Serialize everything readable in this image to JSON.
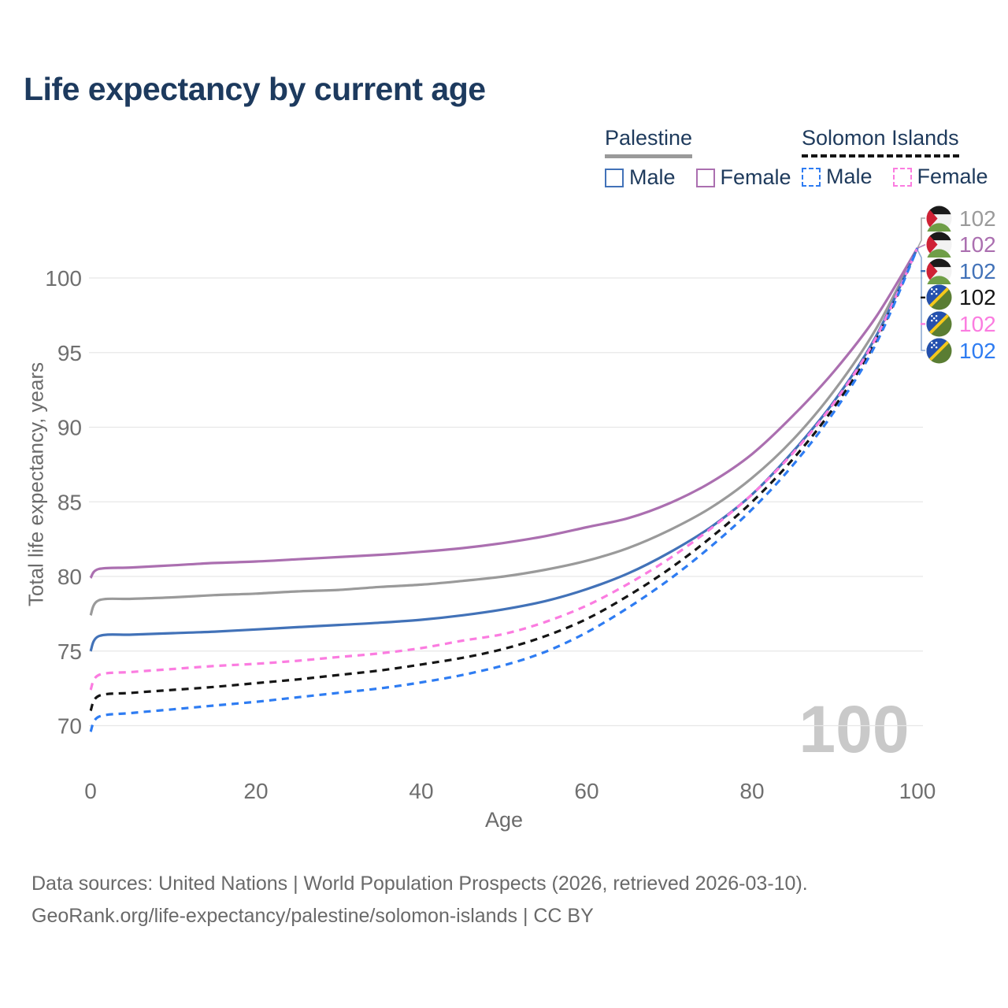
{
  "title": "Life expectancy by current age",
  "legend": {
    "groups": [
      {
        "country": "Palestine",
        "line_style": "solid",
        "country_line_color": "#9a9a9a",
        "items": [
          {
            "label": "Male",
            "color": "#4272b8"
          },
          {
            "label": "Female",
            "color": "#ab6fb0"
          }
        ]
      },
      {
        "country": "Solomon Islands",
        "line_style": "dashed",
        "country_line_color": "#151515",
        "items": [
          {
            "label": "Male",
            "color": "#2e7cf2"
          },
          {
            "label": "Female",
            "color": "#fb7ce0"
          }
        ]
      }
    ]
  },
  "watermark": "100",
  "footer": {
    "line1": "Data sources: United Nations | World Population Prospects (2026, retrieved 2026-03-10).",
    "line2": "GeoRank.org/life-expectancy/palestine/solomon-islands | CC BY"
  },
  "chart_data": {
    "type": "line",
    "title": "Life expectancy by current age",
    "xlabel": "Age",
    "ylabel": "Total life expectancy, years",
    "x_ticks": [
      0,
      20,
      40,
      60,
      80,
      100
    ],
    "y_ticks": [
      100,
      95,
      90,
      85,
      80,
      75,
      70
    ],
    "xlim": [
      0,
      100
    ],
    "ylim": [
      67,
      103
    ],
    "grid": "horizontal",
    "legend_position": "top-right",
    "x": [
      0,
      1,
      5,
      10,
      15,
      20,
      25,
      30,
      35,
      40,
      45,
      50,
      55,
      60,
      65,
      70,
      75,
      80,
      85,
      90,
      95,
      100
    ],
    "series": [
      {
        "name": "Palestine — Both sexes",
        "country": "Palestine",
        "flag": "palestine",
        "color": "#9a9a9a",
        "dashed": false,
        "end_label": "102",
        "values": [
          77.4,
          78.4,
          78.5,
          78.6,
          78.75,
          78.85,
          79.0,
          79.1,
          79.3,
          79.45,
          79.7,
          80.0,
          80.45,
          81.05,
          81.9,
          83.1,
          84.6,
          86.6,
          89.2,
          92.5,
          96.6,
          102
        ]
      },
      {
        "name": "Palestine — Female",
        "country": "Palestine",
        "flag": "palestine",
        "color": "#ab6fb0",
        "dashed": false,
        "end_label": "102",
        "values": [
          79.9,
          80.5,
          80.6,
          80.75,
          80.9,
          81.0,
          81.15,
          81.3,
          81.45,
          81.65,
          81.9,
          82.25,
          82.7,
          83.3,
          83.9,
          84.9,
          86.3,
          88.2,
          90.8,
          93.8,
          97.4,
          102
        ]
      },
      {
        "name": "Palestine — Male",
        "country": "Palestine",
        "flag": "palestine",
        "color": "#4272b8",
        "dashed": false,
        "end_label": "102",
        "values": [
          75.0,
          76.0,
          76.1,
          76.2,
          76.3,
          76.45,
          76.6,
          76.75,
          76.9,
          77.1,
          77.4,
          77.8,
          78.35,
          79.15,
          80.2,
          81.6,
          83.3,
          85.5,
          88.4,
          91.8,
          96.1,
          102
        ]
      },
      {
        "name": "Solomon Islands — Both sexes",
        "country": "Solomon Islands",
        "flag": "solomon-islands",
        "color": "#151515",
        "dashed": true,
        "end_label": "102",
        "values": [
          71.0,
          72.0,
          72.2,
          72.4,
          72.6,
          72.85,
          73.1,
          73.4,
          73.7,
          74.1,
          74.55,
          75.15,
          76.0,
          77.15,
          78.7,
          80.5,
          82.6,
          85.0,
          87.9,
          91.4,
          95.8,
          102
        ]
      },
      {
        "name": "Solomon Islands — Female",
        "country": "Solomon Islands",
        "flag": "solomon-islands",
        "color": "#fb7ce0",
        "dashed": true,
        "end_label": "102",
        "values": [
          72.4,
          73.4,
          73.6,
          73.8,
          74.0,
          74.15,
          74.35,
          74.6,
          74.85,
          75.2,
          75.7,
          76.15,
          76.95,
          78.05,
          79.5,
          81.2,
          83.2,
          85.5,
          88.3,
          91.7,
          96.0,
          102
        ]
      },
      {
        "name": "Solomon Islands — Male",
        "country": "Solomon Islands",
        "flag": "solomon-islands",
        "color": "#2e7cf2",
        "dashed": true,
        "end_label": "102",
        "values": [
          69.6,
          70.6,
          70.85,
          71.1,
          71.35,
          71.6,
          71.9,
          72.2,
          72.5,
          72.9,
          73.4,
          74.05,
          74.95,
          76.25,
          77.9,
          79.8,
          82.0,
          84.5,
          87.5,
          91.1,
          95.6,
          102
        ]
      }
    ]
  }
}
